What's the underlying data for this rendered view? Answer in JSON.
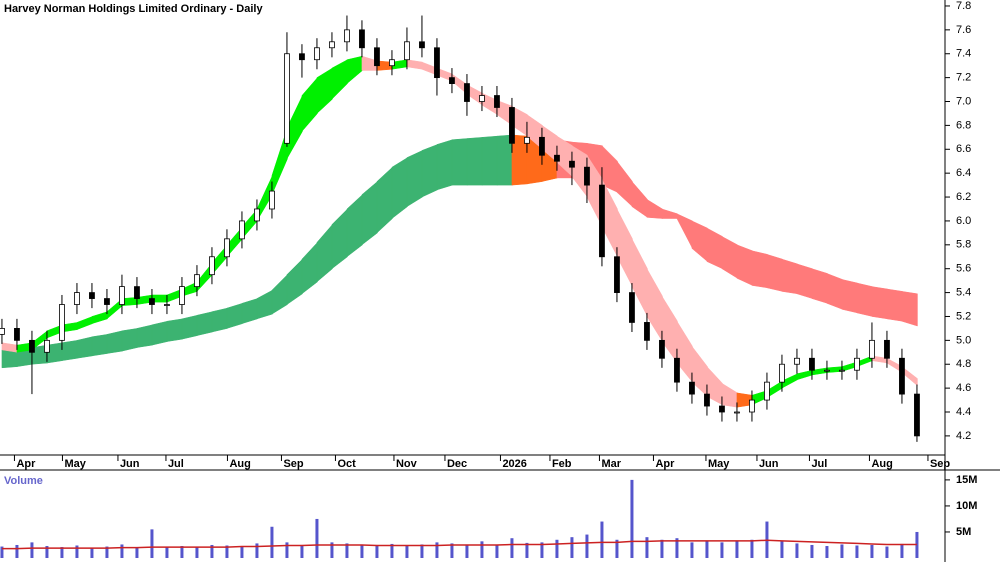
{
  "chart_data": [
    {
      "type": "candlestick",
      "title": "Harvey Norman Holdings Limited Ordinary - Daily",
      "xlim": [
        -0.13,
        62.87
      ],
      "xticks": [
        {
          "value": 1.5,
          "label": "Apr"
        },
        {
          "value": 4.7,
          "label": "May"
        },
        {
          "value": 8.4,
          "label": "Jun"
        },
        {
          "value": 11.6,
          "label": "Jul"
        },
        {
          "value": 15.7,
          "label": "Aug"
        },
        {
          "value": 19.3,
          "label": "Sep"
        },
        {
          "value": 22.9,
          "label": "Oct"
        },
        {
          "value": 26.8,
          "label": "Nov"
        },
        {
          "value": 30.2,
          "label": "Dec"
        },
        {
          "value": 33.9,
          "label": "2026"
        },
        {
          "value": 37.2,
          "label": "Feb"
        },
        {
          "value": 40.5,
          "label": "Mar"
        },
        {
          "value": 44.1,
          "label": "Apr"
        },
        {
          "value": 47.6,
          "label": "May"
        },
        {
          "value": 51,
          "label": "Jun"
        },
        {
          "value": 54.5,
          "label": "Jul"
        },
        {
          "value": 58.5,
          "label": "Aug"
        },
        {
          "value": 62.4,
          "label": "Sep"
        }
      ],
      "ylim": [
        4.04,
        7.85
      ],
      "yticks": [
        4.2,
        4.4,
        4.6,
        4.8,
        {
          "value": 5,
          "label": "5.0"
        },
        5.2,
        5.4,
        5.6,
        5.8,
        {
          "value": 6,
          "label": "6.0"
        },
        6.2,
        6.4,
        6.6,
        6.8,
        {
          "value": 7,
          "label": "7.0"
        },
        7.2,
        7.4,
        7.6,
        7.8
      ],
      "open": [
        5.05,
        5.1,
        5.0,
        4.9,
        5.0,
        5.3,
        5.4,
        5.35,
        5.3,
        5.45,
        5.35,
        5.3,
        5.3,
        5.45,
        5.55,
        5.7,
        5.85,
        6.0,
        6.1,
        6.65,
        7.4,
        7.35,
        7.45,
        7.5,
        7.6,
        7.45,
        7.3,
        7.35,
        7.5,
        7.45,
        7.2,
        7.15,
        7.0,
        7.05,
        6.95,
        6.65,
        6.7,
        6.55,
        6.5,
        6.45,
        6.3,
        5.7,
        5.4,
        5.15,
        5.0,
        4.85,
        4.65,
        4.55,
        4.45,
        4.4,
        4.4,
        4.5,
        4.65,
        4.8,
        4.85,
        4.75,
        4.75,
        4.75,
        4.85,
        5.0,
        4.85,
        4.55
      ],
      "high": [
        5.18,
        5.18,
        5.08,
        5.08,
        5.38,
        5.48,
        5.48,
        5.43,
        5.55,
        5.53,
        5.43,
        5.38,
        5.53,
        5.63,
        5.78,
        5.93,
        6.08,
        6.18,
        6.33,
        7.58,
        7.48,
        7.53,
        7.58,
        7.72,
        7.68,
        7.53,
        7.43,
        7.62,
        7.72,
        7.53,
        7.28,
        7.23,
        7.13,
        7.13,
        7.03,
        6.83,
        6.78,
        6.63,
        6.58,
        6.53,
        6.45,
        5.78,
        5.48,
        5.23,
        5.08,
        4.93,
        4.73,
        4.63,
        4.53,
        4.48,
        4.58,
        4.73,
        4.88,
        4.93,
        4.93,
        4.83,
        4.83,
        4.93,
        5.15,
        5.08,
        4.93,
        4.63
      ],
      "low": [
        4.97,
        4.92,
        4.55,
        4.82,
        4.92,
        5.22,
        5.27,
        5.22,
        5.22,
        5.27,
        5.22,
        5.22,
        5.22,
        5.37,
        5.47,
        5.62,
        5.77,
        5.92,
        6.02,
        6.62,
        7.2,
        7.27,
        7.37,
        7.42,
        7.37,
        7.22,
        7.22,
        7.27,
        7.37,
        7.05,
        7.07,
        6.88,
        6.92,
        6.87,
        6.57,
        6.57,
        6.47,
        6.42,
        6.3,
        6.15,
        5.62,
        5.32,
        5.07,
        4.92,
        4.77,
        4.57,
        4.47,
        4.37,
        4.32,
        4.32,
        4.32,
        4.42,
        4.57,
        4.72,
        4.67,
        4.67,
        4.67,
        4.67,
        4.77,
        4.77,
        4.47,
        4.15
      ],
      "close": [
        5.1,
        5.0,
        4.9,
        5.0,
        5.3,
        5.4,
        5.35,
        5.3,
        5.45,
        5.35,
        5.3,
        5.3,
        5.45,
        5.55,
        5.7,
        5.85,
        6.0,
        6.1,
        6.25,
        7.4,
        7.35,
        7.45,
        7.5,
        7.6,
        7.45,
        7.3,
        7.35,
        7.5,
        7.45,
        7.2,
        7.15,
        7.0,
        7.05,
        6.95,
        6.65,
        6.7,
        6.55,
        6.5,
        6.45,
        6.3,
        5.7,
        5.4,
        5.15,
        5.0,
        4.85,
        4.65,
        4.55,
        4.45,
        4.4,
        4.4,
        4.5,
        4.65,
        4.8,
        4.85,
        4.75,
        4.75,
        4.75,
        4.85,
        5.0,
        4.85,
        4.55,
        4.2
      ],
      "bands": [
        {
          "up_color": "#3cb371",
          "down_color": "#ff7a7a",
          "mixed_color": "#ff6a1a",
          "upper": [
            4.92,
            4.93,
            4.94,
            4.96,
            4.98,
            5.0,
            5.03,
            5.05,
            5.08,
            5.1,
            5.13,
            5.16,
            5.18,
            5.21,
            5.24,
            5.27,
            5.31,
            5.35,
            5.42,
            5.55,
            5.68,
            5.82,
            5.97,
            6.1,
            6.22,
            6.33,
            6.45,
            6.53,
            6.59,
            6.64,
            6.68,
            6.69,
            6.7,
            6.71,
            6.72,
            6.71,
            6.7,
            6.68,
            6.66,
            6.65,
            6.63,
            6.5,
            6.33,
            6.18,
            6.1,
            6.06,
            6.0,
            5.94,
            5.87,
            5.8,
            5.75,
            5.72,
            5.68,
            5.64,
            5.6,
            5.56,
            5.51,
            5.48,
            5.45,
            5.43,
            5.41,
            5.39
          ],
          "lower": [
            4.77,
            4.78,
            4.8,
            4.81,
            4.83,
            4.85,
            4.87,
            4.89,
            4.91,
            4.94,
            4.96,
            4.99,
            5.01,
            5.04,
            5.07,
            5.1,
            5.14,
            5.18,
            5.22,
            5.3,
            5.39,
            5.49,
            5.6,
            5.7,
            5.8,
            5.9,
            6.02,
            6.12,
            6.2,
            6.26,
            6.3,
            6.3,
            6.3,
            6.3,
            6.3,
            6.31,
            6.33,
            6.36,
            6.36,
            6.33,
            6.3,
            6.24,
            6.12,
            6.03,
            6.02,
            6.02,
            5.77,
            5.66,
            5.6,
            5.52,
            5.46,
            5.44,
            5.41,
            5.39,
            5.35,
            5.31,
            5.26,
            5.23,
            5.2,
            5.18,
            5.16,
            5.12
          ]
        },
        {
          "up_color": "#00f000",
          "down_color": "#ffb0b0",
          "mixed_color": "#ff6a1a",
          "upper": [
            4.98,
            4.96,
            4.98,
            5.08,
            5.13,
            5.15,
            5.2,
            5.24,
            5.35,
            5.36,
            5.38,
            5.38,
            5.43,
            5.49,
            5.65,
            5.8,
            5.95,
            6.1,
            6.38,
            6.78,
            7.05,
            7.2,
            7.28,
            7.35,
            7.38,
            7.34,
            7.33,
            7.35,
            7.33,
            7.28,
            7.23,
            7.14,
            7.07,
            7.01,
            6.96,
            6.89,
            6.8,
            6.71,
            6.63,
            6.55,
            6.35,
            6.1,
            5.85,
            5.6,
            5.37,
            5.16,
            4.95,
            4.78,
            4.64,
            4.56,
            4.54,
            4.58,
            4.66,
            4.72,
            4.75,
            4.77,
            4.78,
            4.82,
            4.87,
            4.85,
            4.78,
            4.68
          ],
          "lower": [
            4.92,
            4.9,
            4.92,
            5.02,
            5.07,
            5.09,
            5.14,
            5.18,
            5.29,
            5.3,
            5.32,
            5.32,
            5.37,
            5.41,
            5.55,
            5.7,
            5.85,
            6.0,
            6.22,
            6.52,
            6.75,
            6.9,
            7.02,
            7.15,
            7.26,
            7.26,
            7.27,
            7.29,
            7.27,
            7.22,
            7.17,
            7.06,
            6.97,
            6.89,
            6.8,
            6.71,
            6.6,
            6.49,
            6.37,
            6.2,
            5.95,
            5.7,
            5.45,
            5.2,
            4.99,
            4.81,
            4.65,
            4.53,
            4.46,
            4.44,
            4.46,
            4.52,
            4.6,
            4.67,
            4.71,
            4.73,
            4.74,
            4.78,
            4.83,
            4.81,
            4.73,
            4.62
          ]
        }
      ]
    },
    {
      "type": "volume",
      "label": "Volume",
      "xlim": [
        -0.13,
        62.87
      ],
      "color": "#5555cc",
      "ylim": [
        0,
        16.9
      ],
      "yticks": [
        {
          "value": 5,
          "label": "5M"
        },
        {
          "value": 10,
          "label": "10M"
        },
        {
          "value": 15,
          "label": "15M"
        }
      ],
      "values": [
        2.2,
        2.5,
        3,
        2.3,
        2.1,
        2.4,
        2,
        2.2,
        2.6,
        2,
        5.5,
        2.1,
        2.3,
        2.2,
        2.5,
        2.4,
        2.2,
        2.8,
        6,
        3,
        2.5,
        7.5,
        3,
        2.8,
        2.6,
        2.5,
        2.7,
        2.4,
        2.6,
        3,
        2.8,
        2.6,
        3.2,
        2.5,
        3.8,
        2.9,
        3,
        3.5,
        4,
        4.5,
        7,
        3.5,
        15,
        4,
        3.5,
        3.8,
        3,
        3.2,
        3,
        3.3,
        3.5,
        7,
        3.2,
        2.8,
        2.5,
        2.3,
        2.6,
        2.4,
        2.5,
        2.2,
        2.7,
        5
      ],
      "average": {
        "color": "#cc2222",
        "values": [
          1.8,
          1.8,
          1.9,
          1.9,
          1.9,
          1.9,
          1.9,
          1.9,
          2,
          2,
          2.1,
          2.1,
          2.1,
          2.1,
          2.1,
          2.1,
          2.2,
          2.2,
          2.3,
          2.4,
          2.4,
          2.5,
          2.5,
          2.5,
          2.5,
          2.4,
          2.4,
          2.4,
          2.4,
          2.4,
          2.5,
          2.5,
          2.5,
          2.5,
          2.6,
          2.6,
          2.6,
          2.7,
          2.8,
          2.9,
          3,
          3,
          3.2,
          3.2,
          3.3,
          3.3,
          3.3,
          3.3,
          3.3,
          3.3,
          3.3,
          3.4,
          3.3,
          3.2,
          3.1,
          3,
          2.9,
          2.8,
          2.7,
          2.6,
          2.6,
          2.6
        ]
      }
    }
  ]
}
